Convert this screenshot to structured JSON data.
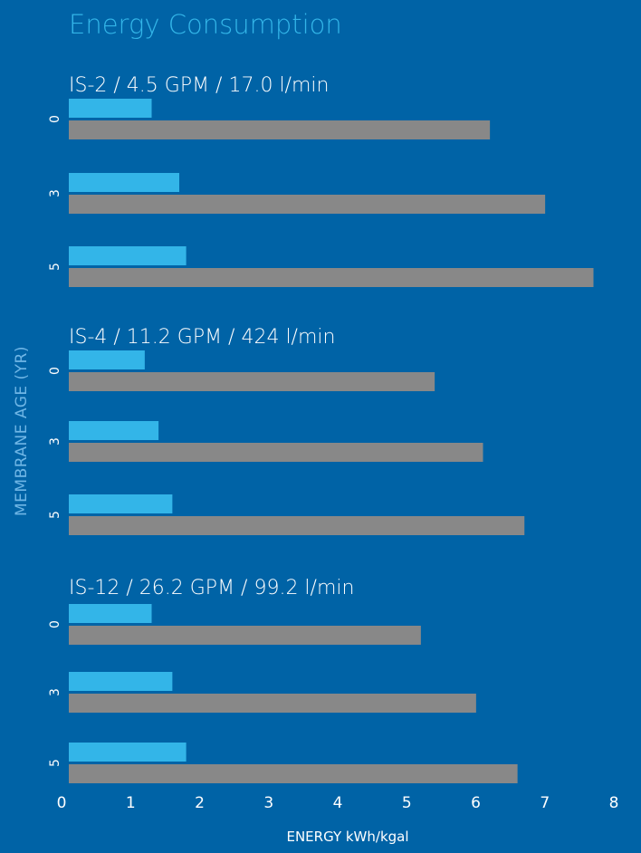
{
  "chart_data": {
    "type": "bar",
    "orientation": "horizontal",
    "title": "Energy Consumption",
    "xlabel": "ENERGY kWh/kgal",
    "ylabel": "MEMBRANE AGE (YR)",
    "xlim": [
      0,
      8
    ],
    "xticks": [
      "0",
      "1",
      "2",
      "3",
      "4",
      "5",
      "6",
      "7",
      "8"
    ],
    "colors": {
      "background": "#0063a6",
      "title": "#33b5e8",
      "series_1": "#33b5e8",
      "series_2": "#888888",
      "ylabel": "#6fb6e6"
    },
    "groups": [
      {
        "title": "IS-2 / 4.5 GPM / 17.0 l/min",
        "categories": [
          "0",
          "3",
          "5"
        ],
        "series": [
          {
            "values": [
              1.2,
              1.6,
              1.7
            ]
          },
          {
            "values": [
              6.1,
              6.9,
              7.6
            ]
          }
        ]
      },
      {
        "title": "IS-4 / 11.2 GPM / 424 l/min",
        "categories": [
          "0",
          "3",
          "5"
        ],
        "series": [
          {
            "values": [
              1.1,
              1.3,
              1.5
            ]
          },
          {
            "values": [
              5.3,
              6.0,
              6.6
            ]
          }
        ]
      },
      {
        "title": "IS-12 / 26.2 GPM / 99.2 l/min",
        "categories": [
          "0",
          "3",
          "5"
        ],
        "series": [
          {
            "values": [
              1.2,
              1.5,
              1.7
            ]
          },
          {
            "values": [
              5.1,
              5.9,
              6.5
            ]
          }
        ]
      }
    ]
  }
}
